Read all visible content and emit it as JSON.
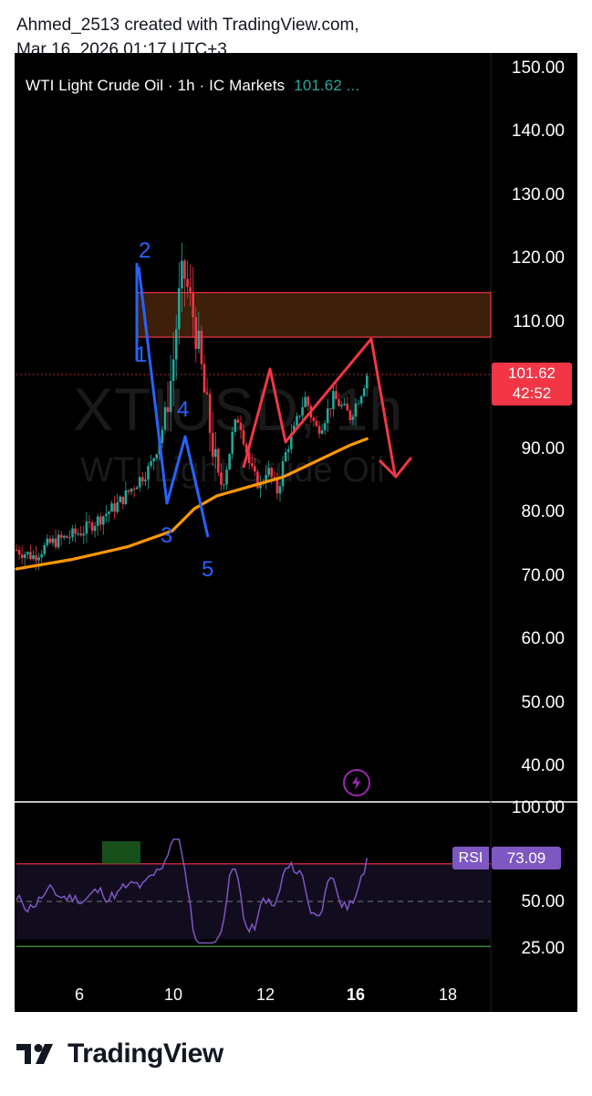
{
  "header": {
    "line1": "Ahmed_2513 created with TradingView.com,",
    "line2": "Mar 16, 2026 01:17 UTC+3"
  },
  "symbol_bar": {
    "name": "WTI Light Crude Oil · 1h · IC Markets",
    "price": "101.62 ..."
  },
  "watermark": {
    "ticker": "XTIUSD, 1h",
    "name": "WTI Light Crude Oil"
  },
  "price_axis": [
    "150.00",
    "140.00",
    "130.00",
    "120.00",
    "110.00",
    "90.00",
    "80.00",
    "70.00",
    "60.00",
    "50.00",
    "40.00"
  ],
  "price_tag": {
    "price": "101.62",
    "countdown": "42:52"
  },
  "rsi_axis": [
    "100.00",
    "50.00",
    "25.00"
  ],
  "rsi_tag": {
    "label": "RSI",
    "value": "73.09"
  },
  "time_axis": [
    "6",
    "10",
    "12",
    "16",
    "18"
  ],
  "wave_labels": [
    "1",
    "2",
    "3",
    "4",
    "5"
  ],
  "footer": {
    "brand": "TradingView"
  },
  "colors": {
    "up": "#26a69a",
    "down": "#f23645",
    "ma": "#ff9800",
    "rsi": "#7e57c2",
    "wave": "#2962ff",
    "arrow": "#f23645",
    "zone": "#3d1f0a",
    "background": "#000000"
  },
  "chart_data": {
    "type": "candlestick",
    "title": "WTI Light Crude Oil · 1h · IC Markets",
    "ylim": [
      35,
      152
    ],
    "x_ticks": [
      "6",
      "10",
      "12",
      "16",
      "18"
    ],
    "last_price": 101.62,
    "countdown": "42:52",
    "close_path": [
      [
        0,
        74
      ],
      [
        3,
        73
      ],
      [
        6,
        75
      ],
      [
        9,
        76
      ],
      [
        12,
        77
      ],
      [
        15,
        79
      ],
      [
        18,
        81
      ],
      [
        21,
        84
      ],
      [
        24,
        87
      ],
      [
        26,
        92
      ],
      [
        28,
        102
      ],
      [
        29,
        112
      ],
      [
        30,
        118
      ],
      [
        31,
        114
      ],
      [
        32,
        110
      ],
      [
        33,
        104
      ],
      [
        34,
        97
      ],
      [
        35,
        92
      ],
      [
        36,
        86
      ],
      [
        37,
        84
      ],
      [
        38,
        88
      ],
      [
        39,
        93
      ],
      [
        40,
        95
      ],
      [
        41,
        91
      ],
      [
        42,
        87
      ],
      [
        43,
        85
      ],
      [
        44,
        84
      ],
      [
        45,
        87
      ],
      [
        46,
        85
      ],
      [
        47,
        83
      ],
      [
        48,
        88
      ],
      [
        49,
        91
      ],
      [
        50,
        93
      ],
      [
        51,
        96
      ],
      [
        52,
        98
      ],
      [
        53,
        95
      ],
      [
        54,
        93
      ],
      [
        55,
        94
      ],
      [
        56,
        96
      ],
      [
        57,
        98
      ],
      [
        58,
        97
      ],
      [
        59,
        96
      ],
      [
        60,
        95
      ],
      [
        61,
        97
      ],
      [
        62,
        99
      ],
      [
        63,
        101.62
      ]
    ],
    "moving_average": [
      [
        0,
        71
      ],
      [
        10,
        72.5
      ],
      [
        20,
        74.5
      ],
      [
        28,
        77
      ],
      [
        32,
        80.5
      ],
      [
        36,
        82.5
      ],
      [
        42,
        84
      ],
      [
        48,
        85.5
      ],
      [
        54,
        88
      ],
      [
        60,
        90.5
      ],
      [
        63,
        91.5
      ]
    ],
    "supply_zone": [
      107.5,
      114.5
    ],
    "rsi": {
      "name": "RSI",
      "value": 73.09,
      "levels": [
        70,
        50,
        30
      ],
      "ylim": [
        20,
        100
      ]
    }
  }
}
